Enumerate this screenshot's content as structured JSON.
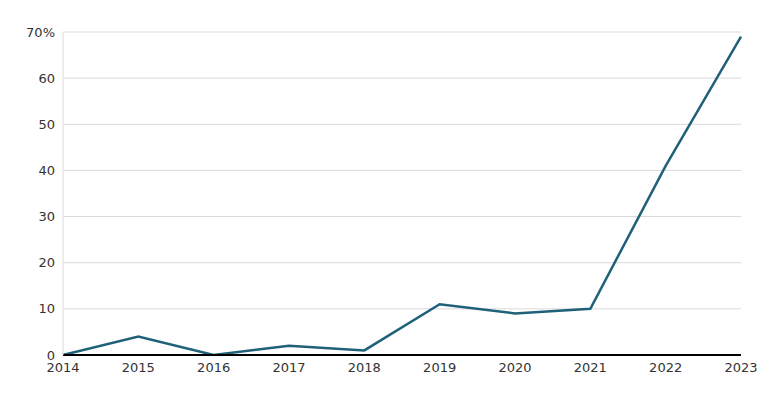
{
  "chart_data": {
    "type": "line",
    "categories": [
      "2014",
      "2015",
      "2016",
      "2017",
      "2018",
      "2019",
      "2020",
      "2021",
      "2022",
      "2023"
    ],
    "values": [
      0,
      4,
      0,
      2,
      1,
      11,
      9,
      10,
      41,
      69
    ],
    "color": "#1f6178",
    "ylim": [
      0,
      70
    ],
    "yticks": [
      0,
      10,
      20,
      30,
      40,
      50,
      60,
      {
        "value": 70,
        "label": "70%"
      }
    ],
    "grid": true
  }
}
